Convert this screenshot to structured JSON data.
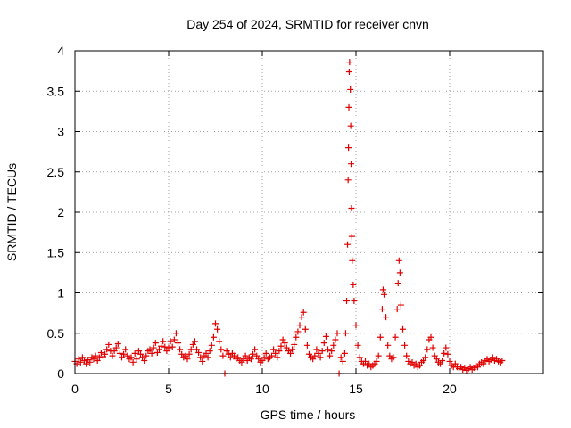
{
  "chart_data": {
    "type": "scatter",
    "title": "Day 254 of 2024, SRMTID for receiver cnvn",
    "xlabel": "GPS time / hours",
    "ylabel": "SRMTID / TECUs",
    "xlim": [
      0,
      25
    ],
    "ylim": [
      0,
      4
    ],
    "xticks": [
      0,
      5,
      10,
      15,
      20
    ],
    "xtick_labels": [
      "0",
      "5",
      "10",
      "15",
      "20"
    ],
    "yticks": [
      0,
      0.5,
      1,
      1.5,
      2,
      2.5,
      3,
      3.5,
      4
    ],
    "ytick_labels": [
      "0",
      "0.5",
      "1",
      "1.5",
      "2",
      "2.5",
      "3",
      "3.5",
      "4"
    ],
    "grid": true,
    "marker": "+",
    "color": "#e00000",
    "series": [
      {
        "name": "SRMTID",
        "points": [
          [
            0.0,
            0.15
          ],
          [
            0.1,
            0.12
          ],
          [
            0.2,
            0.18
          ],
          [
            0.3,
            0.14
          ],
          [
            0.4,
            0.2
          ],
          [
            0.5,
            0.16
          ],
          [
            0.6,
            0.12
          ],
          [
            0.7,
            0.17
          ],
          [
            0.8,
            0.14
          ],
          [
            0.9,
            0.2
          ],
          [
            1.0,
            0.18
          ],
          [
            1.1,
            0.22
          ],
          [
            1.2,
            0.16
          ],
          [
            1.3,
            0.2
          ],
          [
            1.4,
            0.26
          ],
          [
            1.5,
            0.21
          ],
          [
            1.6,
            0.24
          ],
          [
            1.7,
            0.3
          ],
          [
            1.8,
            0.36
          ],
          [
            1.9,
            0.28
          ],
          [
            2.0,
            0.22
          ],
          [
            2.1,
            0.28
          ],
          [
            2.2,
            0.32
          ],
          [
            2.3,
            0.37
          ],
          [
            2.4,
            0.25
          ],
          [
            2.5,
            0.2
          ],
          [
            2.6,
            0.24
          ],
          [
            2.7,
            0.3
          ],
          [
            2.8,
            0.22
          ],
          [
            2.9,
            0.18
          ],
          [
            3.0,
            0.2
          ],
          [
            3.1,
            0.14
          ],
          [
            3.2,
            0.25
          ],
          [
            3.3,
            0.18
          ],
          [
            3.4,
            0.28
          ],
          [
            3.5,
            0.24
          ],
          [
            3.6,
            0.2
          ],
          [
            3.7,
            0.16
          ],
          [
            3.8,
            0.22
          ],
          [
            3.9,
            0.28
          ],
          [
            4.0,
            0.3
          ],
          [
            4.1,
            0.25
          ],
          [
            4.2,
            0.32
          ],
          [
            4.3,
            0.38
          ],
          [
            4.4,
            0.26
          ],
          [
            4.5,
            0.3
          ],
          [
            4.6,
            0.34
          ],
          [
            4.7,
            0.4
          ],
          [
            4.8,
            0.33
          ],
          [
            4.9,
            0.28
          ],
          [
            5.0,
            0.32
          ],
          [
            5.1,
            0.4
          ],
          [
            5.2,
            0.33
          ],
          [
            5.3,
            0.42
          ],
          [
            5.4,
            0.5
          ],
          [
            5.5,
            0.38
          ],
          [
            5.6,
            0.3
          ],
          [
            5.7,
            0.24
          ],
          [
            5.8,
            0.2
          ],
          [
            5.9,
            0.22
          ],
          [
            6.0,
            0.18
          ],
          [
            6.1,
            0.24
          ],
          [
            6.2,
            0.3
          ],
          [
            6.3,
            0.36
          ],
          [
            6.4,
            0.4
          ],
          [
            6.5,
            0.3
          ],
          [
            6.6,
            0.26
          ],
          [
            6.7,
            0.2
          ],
          [
            6.8,
            0.15
          ],
          [
            6.9,
            0.22
          ],
          [
            7.0,
            0.25
          ],
          [
            7.1,
            0.2
          ],
          [
            7.2,
            0.28
          ],
          [
            7.3,
            0.35
          ],
          [
            7.4,
            0.45
          ],
          [
            7.5,
            0.62
          ],
          [
            7.6,
            0.55
          ],
          [
            7.7,
            0.4
          ],
          [
            7.8,
            0.3
          ],
          [
            7.9,
            0.22
          ],
          [
            8.0,
            0.0
          ],
          [
            8.1,
            0.28
          ],
          [
            8.2,
            0.24
          ],
          [
            8.3,
            0.2
          ],
          [
            8.4,
            0.25
          ],
          [
            8.5,
            0.22
          ],
          [
            8.6,
            0.18
          ],
          [
            8.7,
            0.2
          ],
          [
            8.8,
            0.16
          ],
          [
            8.9,
            0.14
          ],
          [
            9.0,
            0.18
          ],
          [
            9.1,
            0.22
          ],
          [
            9.2,
            0.16
          ],
          [
            9.3,
            0.2
          ],
          [
            9.4,
            0.18
          ],
          [
            9.5,
            0.24
          ],
          [
            9.6,
            0.3
          ],
          [
            9.7,
            0.22
          ],
          [
            9.8,
            0.18
          ],
          [
            9.9,
            0.14
          ],
          [
            10.0,
            0.16
          ],
          [
            10.1,
            0.2
          ],
          [
            10.2,
            0.25
          ],
          [
            10.3,
            0.18
          ],
          [
            10.4,
            0.2
          ],
          [
            10.5,
            0.22
          ],
          [
            10.6,
            0.3
          ],
          [
            10.7,
            0.25
          ],
          [
            10.8,
            0.2
          ],
          [
            10.9,
            0.28
          ],
          [
            11.0,
            0.34
          ],
          [
            11.1,
            0.42
          ],
          [
            11.2,
            0.38
          ],
          [
            11.3,
            0.32
          ],
          [
            11.4,
            0.28
          ],
          [
            11.5,
            0.25
          ],
          [
            11.6,
            0.3
          ],
          [
            11.7,
            0.36
          ],
          [
            11.8,
            0.45
          ],
          [
            11.9,
            0.52
          ],
          [
            12.0,
            0.6
          ],
          [
            12.1,
            0.7
          ],
          [
            12.2,
            0.76
          ],
          [
            12.3,
            0.55
          ],
          [
            12.4,
            0.35
          ],
          [
            12.5,
            0.24
          ],
          [
            12.6,
            0.2
          ],
          [
            12.7,
            0.18
          ],
          [
            12.8,
            0.22
          ],
          [
            12.9,
            0.3
          ],
          [
            13.0,
            0.25
          ],
          [
            13.1,
            0.2
          ],
          [
            13.2,
            0.28
          ],
          [
            13.3,
            0.38
          ],
          [
            13.4,
            0.46
          ],
          [
            13.5,
            0.3
          ],
          [
            13.6,
            0.22
          ],
          [
            13.7,
            0.28
          ],
          [
            13.8,
            0.35
          ],
          [
            13.9,
            0.42
          ],
          [
            14.0,
            0.5
          ],
          [
            14.1,
            0.0
          ],
          [
            14.2,
            0.2
          ],
          [
            14.3,
            0.15
          ],
          [
            14.4,
            0.25
          ],
          [
            14.45,
            0.5
          ],
          [
            14.5,
            0.9
          ],
          [
            14.55,
            1.6
          ],
          [
            14.58,
            2.4
          ],
          [
            14.6,
            2.8
          ],
          [
            14.62,
            3.3
          ],
          [
            14.64,
            3.74
          ],
          [
            14.66,
            3.86
          ],
          [
            14.7,
            3.52
          ],
          [
            14.72,
            3.07
          ],
          [
            14.74,
            2.6
          ],
          [
            14.76,
            2.05
          ],
          [
            14.78,
            1.7
          ],
          [
            14.8,
            1.4
          ],
          [
            14.85,
            1.1
          ],
          [
            14.9,
            0.9
          ],
          [
            15.0,
            0.6
          ],
          [
            15.1,
            0.35
          ],
          [
            15.2,
            0.2
          ],
          [
            15.3,
            0.15
          ],
          [
            15.4,
            0.12
          ],
          [
            15.5,
            0.15
          ],
          [
            15.6,
            0.1
          ],
          [
            15.7,
            0.12
          ],
          [
            15.8,
            0.08
          ],
          [
            15.9,
            0.1
          ],
          [
            16.0,
            0.12
          ],
          [
            16.1,
            0.15
          ],
          [
            16.2,
            0.22
          ],
          [
            16.3,
            0.45
          ],
          [
            16.4,
            0.8
          ],
          [
            16.45,
            1.04
          ],
          [
            16.5,
            0.98
          ],
          [
            16.6,
            0.7
          ],
          [
            16.7,
            0.35
          ],
          [
            16.8,
            0.22
          ],
          [
            16.9,
            0.18
          ],
          [
            17.0,
            0.2
          ],
          [
            17.1,
            0.45
          ],
          [
            17.2,
            0.8
          ],
          [
            17.25,
            1.12
          ],
          [
            17.3,
            1.4
          ],
          [
            17.35,
            1.25
          ],
          [
            17.4,
            0.85
          ],
          [
            17.5,
            0.55
          ],
          [
            17.6,
            0.35
          ],
          [
            17.7,
            0.22
          ],
          [
            17.8,
            0.15
          ],
          [
            17.9,
            0.12
          ],
          [
            18.0,
            0.14
          ],
          [
            18.1,
            0.1
          ],
          [
            18.2,
            0.12
          ],
          [
            18.3,
            0.08
          ],
          [
            18.4,
            0.1
          ],
          [
            18.5,
            0.14
          ],
          [
            18.6,
            0.16
          ],
          [
            18.7,
            0.2
          ],
          [
            18.8,
            0.3
          ],
          [
            18.9,
            0.42
          ],
          [
            19.0,
            0.45
          ],
          [
            19.1,
            0.32
          ],
          [
            19.2,
            0.22
          ],
          [
            19.3,
            0.18
          ],
          [
            19.4,
            0.14
          ],
          [
            19.5,
            0.12
          ],
          [
            19.6,
            0.16
          ],
          [
            19.7,
            0.25
          ],
          [
            19.8,
            0.32
          ],
          [
            19.9,
            0.24
          ],
          [
            20.0,
            0.15
          ],
          [
            20.1,
            0.1
          ],
          [
            20.2,
            0.08
          ],
          [
            20.3,
            0.12
          ],
          [
            20.4,
            0.08
          ],
          [
            20.5,
            0.06
          ],
          [
            20.6,
            0.08
          ],
          [
            20.7,
            0.05
          ],
          [
            20.8,
            0.07
          ],
          [
            20.9,
            0.04
          ],
          [
            21.0,
            0.06
          ],
          [
            21.1,
            0.08
          ],
          [
            21.2,
            0.05
          ],
          [
            21.3,
            0.07
          ],
          [
            21.4,
            0.1
          ],
          [
            21.5,
            0.08
          ],
          [
            21.6,
            0.12
          ],
          [
            21.7,
            0.14
          ],
          [
            21.8,
            0.12
          ],
          [
            21.9,
            0.16
          ],
          [
            22.0,
            0.18
          ],
          [
            22.1,
            0.15
          ],
          [
            22.2,
            0.17
          ],
          [
            22.3,
            0.2
          ],
          [
            22.4,
            0.16
          ],
          [
            22.5,
            0.18
          ],
          [
            22.6,
            0.15
          ],
          [
            22.7,
            0.14
          ],
          [
            22.8,
            0.16
          ]
        ]
      }
    ]
  }
}
